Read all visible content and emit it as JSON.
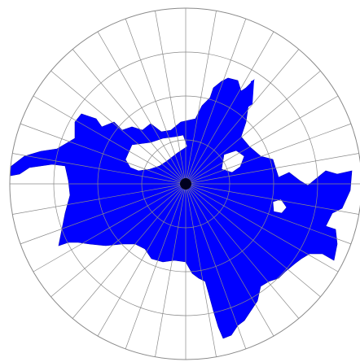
{
  "map": {
    "projection": "polar azimuthal",
    "fill_color": "#0000ff",
    "grid_color": "#8a8a8a",
    "background_color": "#ffffff",
    "center_mark_color": "#000020",
    "meridian_count": 36,
    "parallel_count": 3
  }
}
